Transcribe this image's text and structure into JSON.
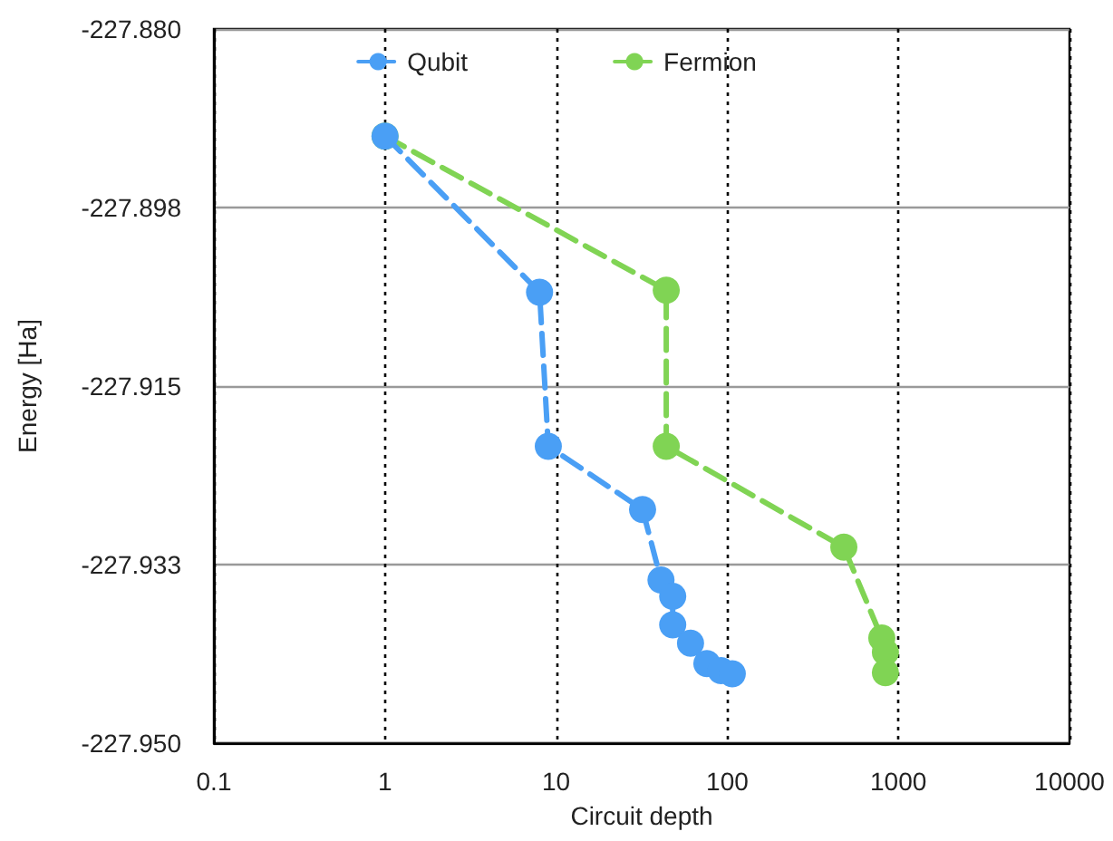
{
  "chart_data": {
    "type": "line",
    "xlabel": "Circuit depth",
    "ylabel": "Energy [Ha]",
    "log": "x",
    "xlim": [
      0.1,
      10000
    ],
    "xticks": [
      0.1,
      1,
      10,
      100,
      1000,
      10000
    ],
    "ylim": [
      -227.95,
      -227.88
    ],
    "yticks": [
      {
        "value": -227.95,
        "label": "-227.950"
      },
      {
        "value": -227.9325,
        "label": "-227.933"
      },
      {
        "value": -227.915,
        "label": "-227.915"
      },
      {
        "value": -227.8975,
        "label": "-227.898"
      },
      {
        "value": -227.88,
        "label": "-227.880"
      }
    ],
    "grid": true,
    "legend": "top",
    "marker": "circle",
    "line_style": "dashed",
    "series": [
      {
        "name": "Qubit",
        "color": "#4a9ff5",
        "x": [
          1,
          8,
          9,
          32,
          41,
          48,
          48,
          61,
          76,
          92,
          107
        ],
        "values": [
          -227.8905,
          -227.9058,
          -227.9209,
          -227.9271,
          -227.934,
          -227.9356,
          -227.9384,
          -227.9402,
          -227.9422,
          -227.9429,
          -227.9432
        ]
      },
      {
        "name": "Fermion",
        "color": "#80d454",
        "x": [
          1,
          44,
          44,
          480,
          800,
          840,
          840
        ],
        "values": [
          -227.8905,
          -227.9056,
          -227.9209,
          -227.9308,
          -227.9397,
          -227.9411,
          -227.9431
        ]
      }
    ]
  }
}
